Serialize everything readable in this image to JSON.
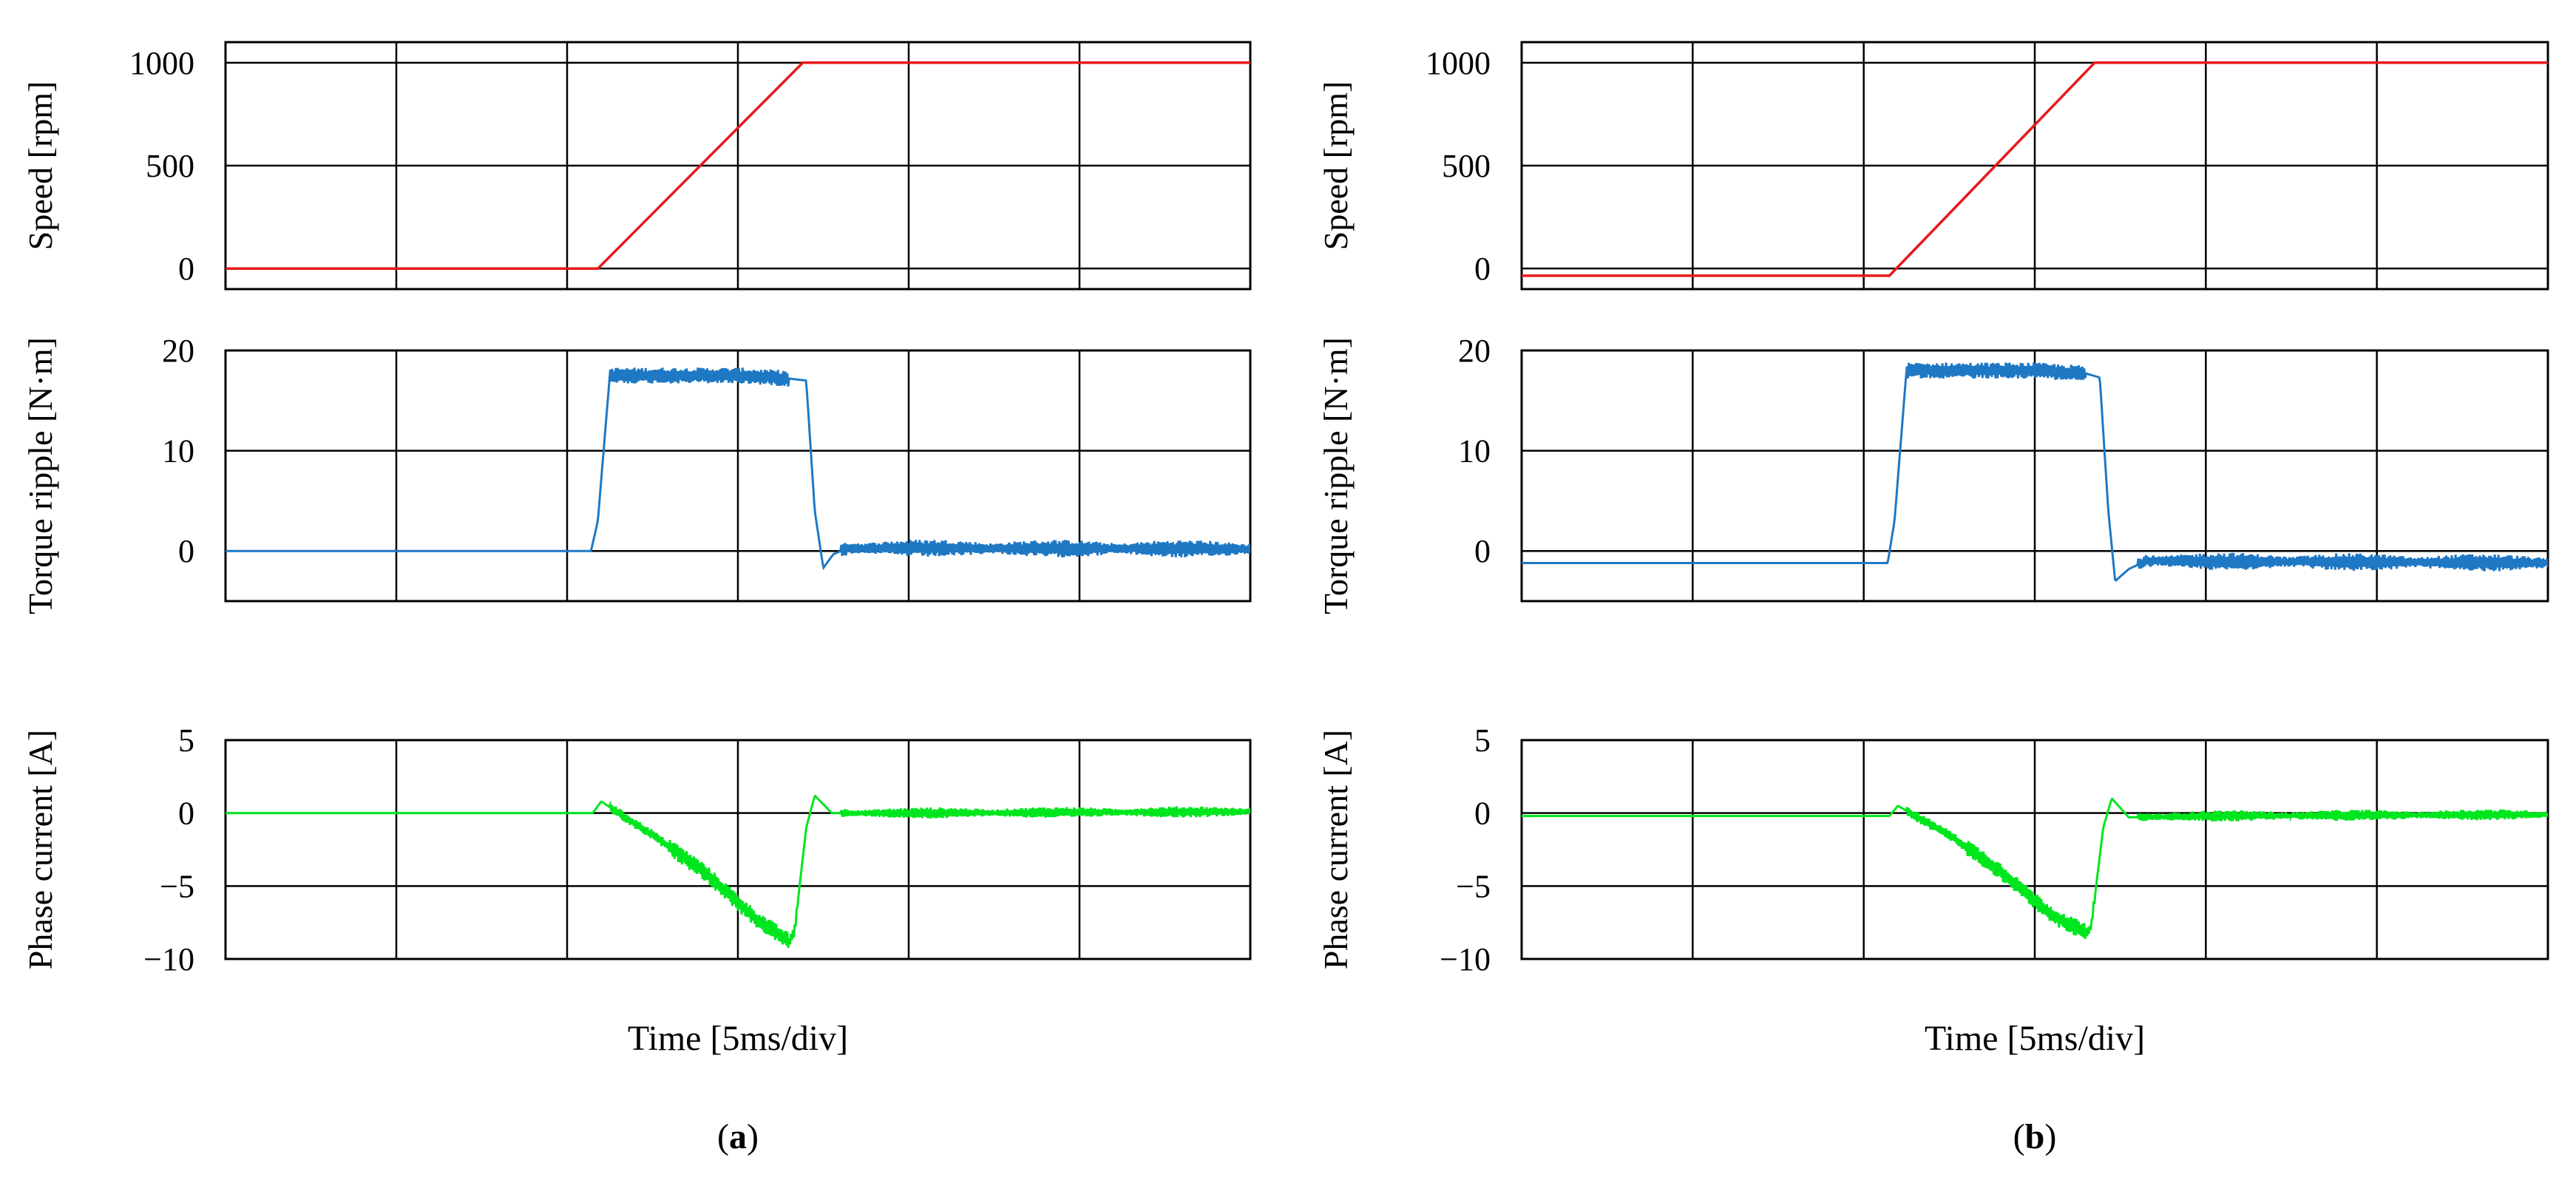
{
  "figure": {
    "panel_labels": [
      {
        "open": "(",
        "letter": "a",
        "close": ")"
      },
      {
        "open": "(",
        "letter": "b",
        "close": ")"
      }
    ]
  },
  "chart_data": [
    {
      "panel": "a",
      "type": "line",
      "xlabel": "Time [5ms/div]",
      "x_divisions": 6,
      "grid": true,
      "subplots": [
        {
          "ylabel": "Speed [rpm]",
          "ylim": [
            -100,
            1100
          ],
          "yticks": [
            0,
            500,
            1000
          ],
          "ytick_labels": [
            "0",
            "500",
            "1000"
          ],
          "color": "#e8191b",
          "series": [
            {
              "x": [
                0,
                2.18,
                3.38,
                6.0
              ],
              "y": [
                0,
                0,
                1000,
                1000
              ]
            }
          ]
        },
        {
          "ylabel": "Torque ripple [N·m]",
          "ylim": [
            -5,
            20
          ],
          "yticks": [
            0,
            10,
            20
          ],
          "ytick_labels": [
            "0",
            "10",
            "20"
          ],
          "color": "#1f78c4",
          "series": [
            {
              "x": [
                0,
                2.14,
                2.18,
                2.25,
                3.0,
                3.3,
                3.4,
                3.45,
                3.5,
                3.56,
                3.65,
                6.0
              ],
              "y": [
                0,
                0,
                3,
                17.5,
                17.5,
                17.2,
                17.0,
                4,
                -1.7,
                -0.3,
                0.3,
                0.2
              ]
            }
          ]
        },
        {
          "ylabel": "Phase current [A]",
          "ylim": [
            -10,
            5
          ],
          "yticks": [
            -10,
            -5,
            0,
            5
          ],
          "ytick_labels": [
            "−10",
            "−5",
            "0",
            "5"
          ],
          "color": "#00e61e",
          "series": [
            {
              "x": [
                0,
                2.15,
                2.2,
                2.3,
                2.5,
                2.8,
                3.1,
                3.3,
                3.33,
                3.4,
                3.45,
                3.55,
                4.0,
                6.0
              ],
              "y": [
                0,
                0,
                0.8,
                0,
                -1.5,
                -4,
                -7.2,
                -8.8,
                -8.2,
                -1,
                1.2,
                0,
                0,
                0.1
              ]
            }
          ]
        }
      ]
    },
    {
      "panel": "b",
      "type": "line",
      "xlabel": "Time [5ms/div]",
      "x_divisions": 6,
      "grid": true,
      "subplots": [
        {
          "ylabel": "Speed [rpm]",
          "ylim": [
            -100,
            1100
          ],
          "yticks": [
            0,
            500,
            1000
          ],
          "ytick_labels": [
            "0",
            "500",
            "1000"
          ],
          "color": "#e8191b",
          "series": [
            {
              "x": [
                0,
                2.15,
                3.35,
                6.0
              ],
              "y": [
                -35,
                -35,
                1000,
                1000
              ]
            }
          ]
        },
        {
          "ylabel": "Torque ripple [N·m]",
          "ylim": [
            -5,
            20
          ],
          "yticks": [
            0,
            10,
            20
          ],
          "ytick_labels": [
            "0",
            "10",
            "20"
          ],
          "color": "#1f78c4",
          "series": [
            {
              "x": [
                0,
                2.14,
                2.18,
                2.25,
                3.0,
                3.3,
                3.38,
                3.43,
                3.47,
                3.55,
                3.65,
                6.0
              ],
              "y": [
                -1.2,
                -1.2,
                3,
                18,
                18,
                17.7,
                17.3,
                4,
                -3,
                -1.8,
                -1.0,
                -1.2
              ]
            }
          ]
        },
        {
          "ylabel": "Phase current [A]",
          "ylim": [
            -10,
            5
          ],
          "yticks": [
            -10,
            -5,
            0,
            5
          ],
          "ytick_labels": [
            "−10",
            "−5",
            "0",
            "5"
          ],
          "color": "#00e61e",
          "series": [
            {
              "x": [
                0,
                2.15,
                2.2,
                2.3,
                2.5,
                2.8,
                3.1,
                3.3,
                3.33,
                3.4,
                3.45,
                3.55,
                4.0,
                6.0
              ],
              "y": [
                -0.2,
                -0.2,
                0.5,
                -0.2,
                -1.5,
                -4,
                -7.0,
                -8.2,
                -7.8,
                -1,
                1.0,
                -0.3,
                -0.2,
                -0.1
              ]
            }
          ]
        }
      ]
    }
  ]
}
